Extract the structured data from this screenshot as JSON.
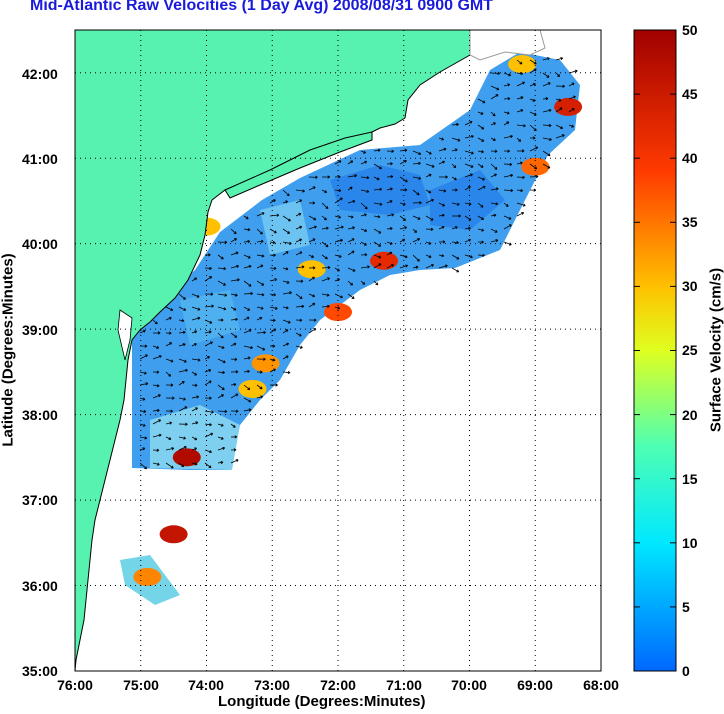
{
  "title": "Mid-Atlantic Raw Velocities (1 Day Avg) 2008/08/31 0900 GMT",
  "xlabel": "Longitude (Degrees:Minutes)",
  "ylabel": "Latitude (Degrees:Minutes)",
  "colorbar_label": "Surface Velocity (cm/s)",
  "x_ticks": [
    "76:00",
    "75:00",
    "74:00",
    "73:00",
    "72:00",
    "71:00",
    "70:00",
    "69:00",
    "68:00"
  ],
  "y_ticks": [
    "42:00",
    "41:00",
    "40:00",
    "39:00",
    "38:00",
    "37:00",
    "36:00",
    "35:00"
  ],
  "colorbar_ticks": [
    "50",
    "45",
    "40",
    "35",
    "30",
    "25",
    "20",
    "15",
    "10",
    "5",
    "0"
  ],
  "colors": {
    "land": "#57f2b0",
    "title": "#1a1adc",
    "grid": "#000000",
    "bathymetry": "#9a9a9a"
  },
  "chart_data": {
    "type": "heatmap",
    "title": "Mid-Atlantic Raw Velocities (1 Day Avg) 2008/08/31 0900 GMT",
    "xlabel": "Longitude (Degrees:Minutes)",
    "ylabel": "Latitude (Degrees:Minutes)",
    "xlim": [
      -76,
      -68
    ],
    "ylim": [
      35,
      42.5
    ],
    "colorbar": {
      "label": "Surface Velocity (cm/s)",
      "range": [
        0,
        50
      ],
      "colormap": "jet"
    },
    "grid": true,
    "hotspots": [
      {
        "lon": -74.3,
        "lat": 37.5,
        "speed": 48
      },
      {
        "lon": -68.5,
        "lat": 41.6,
        "speed": 44
      },
      {
        "lon": -69.0,
        "lat": 40.9,
        "speed": 36
      },
      {
        "lon": -71.3,
        "lat": 39.8,
        "speed": 42
      },
      {
        "lon": -72.0,
        "lat": 39.2,
        "speed": 38
      },
      {
        "lon": -72.4,
        "lat": 39.7,
        "speed": 30
      },
      {
        "lon": -73.1,
        "lat": 38.6,
        "speed": 33
      },
      {
        "lon": -73.3,
        "lat": 38.3,
        "speed": 30
      },
      {
        "lon": -74.5,
        "lat": 36.6,
        "speed": 46
      },
      {
        "lon": -74.9,
        "lat": 36.1,
        "speed": 34
      },
      {
        "lon": -69.2,
        "lat": 42.1,
        "speed": 30
      },
      {
        "lon": -74.0,
        "lat": 40.2,
        "speed": 30
      }
    ],
    "background_speed_cm_s": 7
  }
}
